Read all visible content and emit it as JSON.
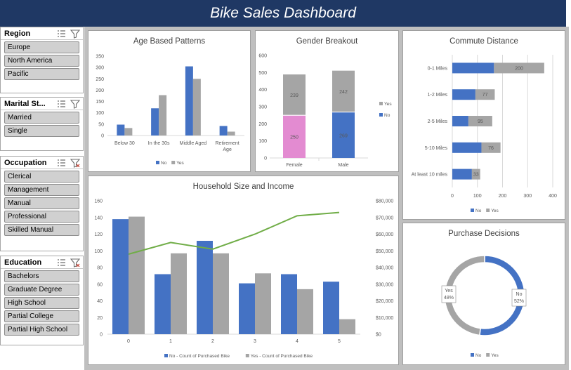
{
  "title": "Bike Sales Dashboard",
  "slicers": [
    {
      "title": "Region",
      "items": [
        "Europe",
        "North America",
        "Pacific"
      ]
    },
    {
      "title": "Marital St...",
      "items": [
        "Married",
        "Single"
      ]
    },
    {
      "title": "Occupation",
      "items": [
        "Clerical",
        "Management",
        "Manual",
        "Professional",
        "Skilled Manual"
      ]
    },
    {
      "title": "Education",
      "items": [
        "Bachelors",
        "Graduate Degree",
        "High School",
        "Partial College",
        "Partial High School"
      ]
    }
  ],
  "colors": {
    "no": "#4472c4",
    "yes": "#a5a5a5",
    "female_no": "#e38bd1",
    "line": "#70ad47",
    "banner": "#1f3864"
  },
  "chart_data": [
    {
      "id": "age",
      "type": "bar",
      "title": "Age Based Patterns",
      "categories": [
        "Below 30",
        "In the 30s",
        "Middle Aged",
        "Retirement Age"
      ],
      "series": [
        {
          "name": "No",
          "values": [
            48,
            120,
            305,
            42
          ]
        },
        {
          "name": "Yes",
          "values": [
            33,
            178,
            250,
            17
          ]
        }
      ],
      "ylim": [
        0,
        350
      ],
      "yticks": [
        "0",
        "50",
        "100",
        "150",
        "200",
        "250",
        "300",
        "350"
      ],
      "legend": "bottom"
    },
    {
      "id": "gender",
      "type": "bar",
      "title": "Gender Breakout",
      "stacked": true,
      "categories": [
        "Female",
        "Male"
      ],
      "series": [
        {
          "name": "No",
          "values": [
            250,
            269
          ]
        },
        {
          "name": "Yes",
          "values": [
            239,
            242
          ]
        }
      ],
      "ylim": [
        0,
        600
      ],
      "yticks": [
        "0",
        "100",
        "200",
        "300",
        "400",
        "500",
        "600"
      ],
      "legend": "right"
    },
    {
      "id": "commute",
      "type": "bar",
      "title": "Commute Distance",
      "orientation": "horizontal",
      "stacked": true,
      "categories": [
        "0-1 Miles",
        "1-2 Miles",
        "2-5 Miles",
        "5-10 Miles",
        "At least 10 miles"
      ],
      "series": [
        {
          "name": "No",
          "values": [
            166,
            92,
            64,
            116,
            78
          ]
        },
        {
          "name": "Yes",
          "values": [
            200,
            77,
            95,
            76,
            33
          ]
        }
      ],
      "xlim": [
        0,
        400
      ],
      "xticks": [
        "0",
        "100",
        "200",
        "300",
        "400"
      ],
      "data_labels": [
        "200",
        "77",
        "95",
        "76",
        "33"
      ],
      "legend": "bottom"
    },
    {
      "id": "household",
      "type": "bar",
      "title": "Household Size and Income",
      "categories": [
        "0",
        "1",
        "2",
        "3",
        "4",
        "5"
      ],
      "series": [
        {
          "name": "No - Count of Purchased Bike",
          "values": [
            138,
            72,
            112,
            61,
            72,
            63
          ]
        },
        {
          "name": "Yes - Count of Purchased Bike",
          "values": [
            141,
            97,
            97,
            73,
            54,
            18
          ]
        }
      ],
      "line": {
        "values": [
          48000,
          55000,
          51000,
          60000,
          71000,
          73000
        ]
      },
      "ylim": [
        0,
        160
      ],
      "yticks": [
        "0",
        "20",
        "40",
        "60",
        "80",
        "100",
        "120",
        "140",
        "160"
      ],
      "y2lim": [
        0,
        80000
      ],
      "y2ticks": [
        "$0",
        "$10,000",
        "$20,000",
        "$30,000",
        "$40,000",
        "$50,000",
        "$60,000",
        "$70,000",
        "$80,000"
      ],
      "legend": "bottom"
    },
    {
      "id": "purchase",
      "type": "pie",
      "donut": true,
      "title": "Purchase Decisions",
      "slices": [
        {
          "name": "No",
          "value": 52,
          "label": "52%"
        },
        {
          "name": "Yes",
          "value": 48,
          "label": "48%"
        }
      ],
      "legend": "bottom"
    }
  ]
}
